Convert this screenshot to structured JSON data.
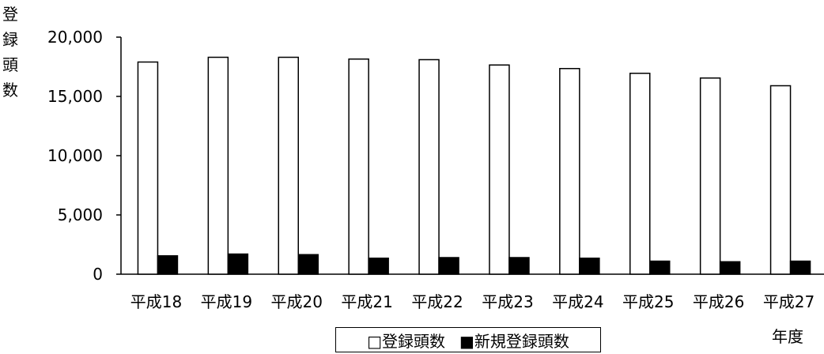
{
  "chart_data": {
    "type": "bar",
    "categories": [
      "平成18",
      "平成19",
      "平成20",
      "平成21",
      "平成22",
      "平成23",
      "平成24",
      "平成25",
      "平成26",
      "平成27"
    ],
    "series": [
      {
        "name": "登録頭数",
        "values": [
          17900,
          18300,
          18300,
          18150,
          18100,
          17650,
          17350,
          16950,
          16550,
          15900
        ],
        "color": "#ffffff"
      },
      {
        "name": "新規登録頭数",
        "values": [
          1550,
          1700,
          1650,
          1350,
          1400,
          1400,
          1350,
          1100,
          1050,
          1100
        ],
        "color": "#000000"
      }
    ],
    "ylabel": "登録頭数",
    "xlabel": "年度",
    "ylim": [
      0,
      20000
    ],
    "yticks": [
      "0",
      "5,000",
      "10,000",
      "15,000",
      "20,000"
    ],
    "ytick_values": [
      0,
      5000,
      10000,
      15000,
      20000
    ],
    "legend": {
      "position": "bottom",
      "entries": [
        "□登録頭数",
        "■新規登録頭数"
      ]
    },
    "grid": false
  }
}
